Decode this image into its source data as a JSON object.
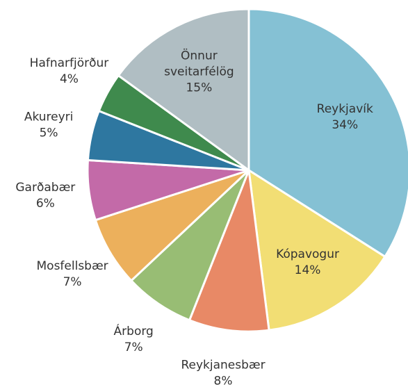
{
  "chart_data": {
    "type": "pie",
    "categories": [
      "Reykjavík",
      "Kópavogur",
      "Reykjanesbær",
      "Árborg",
      "Mosfellsbær",
      "Garðabær",
      "Akureyri",
      "Hafnarfjörður",
      "Önnur sveitarfélög"
    ],
    "values": [
      34,
      14,
      8,
      7,
      7,
      6,
      5,
      4,
      15
    ],
    "value_labels": [
      "34%",
      "14%",
      "8%",
      "7%",
      "7%",
      "6%",
      "5%",
      "4%",
      "15%"
    ],
    "colors": [
      "#85c1d4",
      "#f2de74",
      "#e88966",
      "#98bd74",
      "#ecb05c",
      "#c36aa8",
      "#2e77a0",
      "#3f8a4d",
      "#b0bec3"
    ]
  }
}
